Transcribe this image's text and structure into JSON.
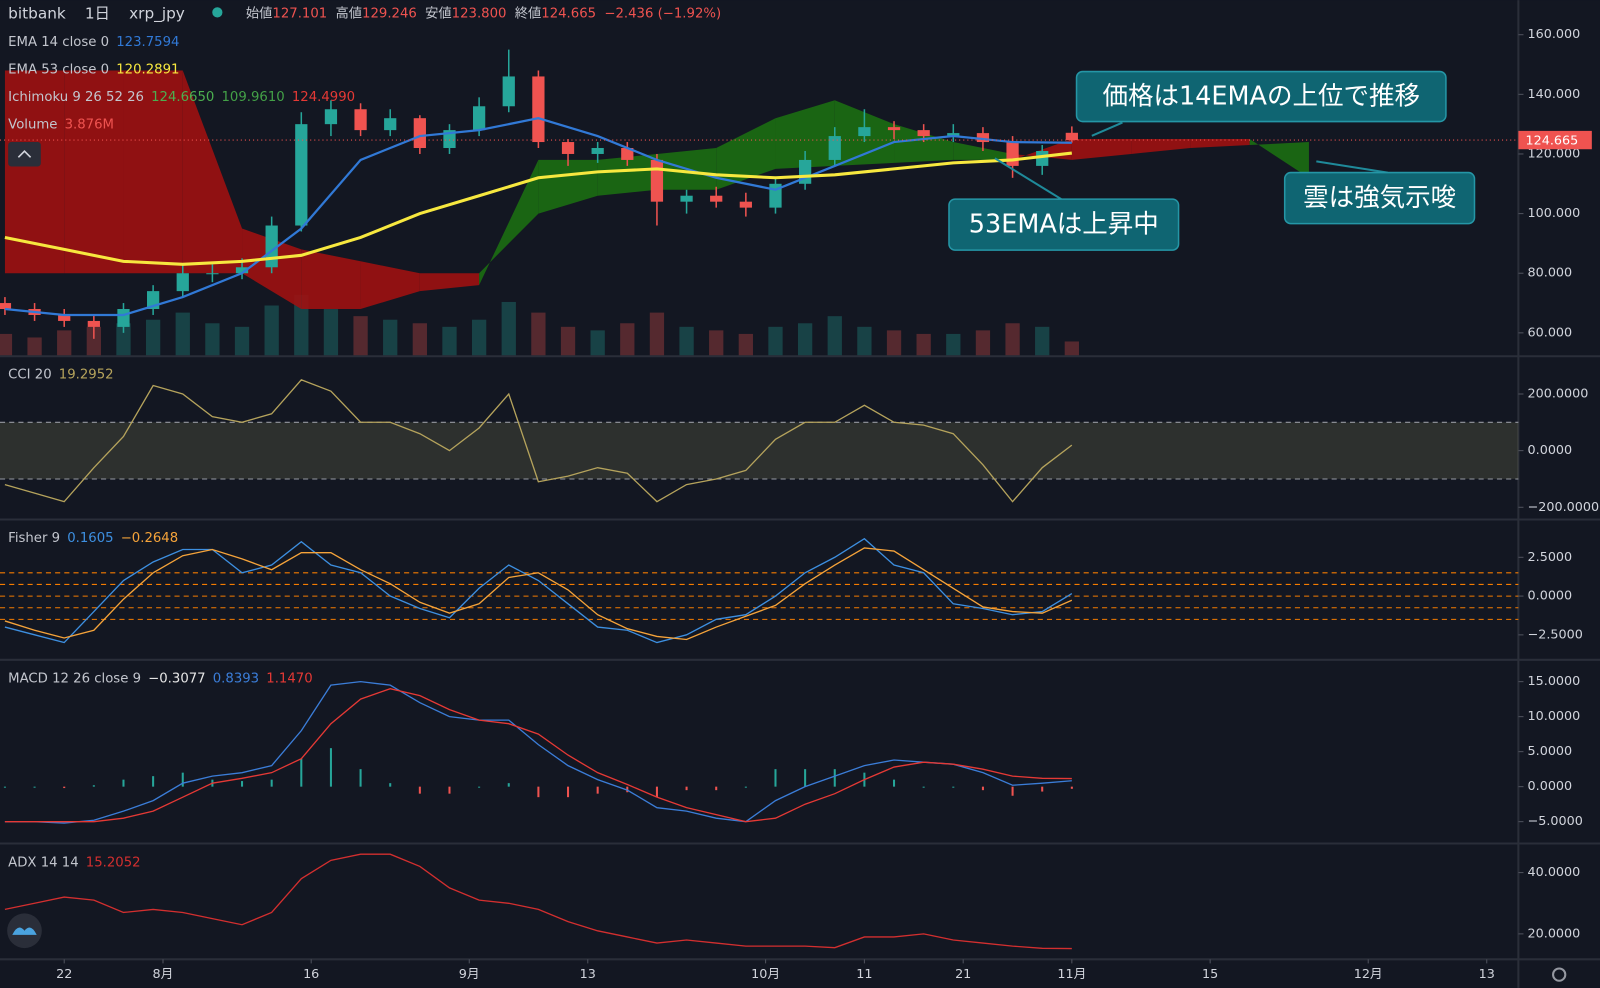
{
  "header": {
    "exchange": "bitbank",
    "interval": "1日",
    "symbol": "xrp_jpy",
    "ohlc": [
      {
        "label": "始値",
        "value": "127.101"
      },
      {
        "label": "高値",
        "value": "129.246"
      },
      {
        "label": "安値",
        "value": "123.800"
      },
      {
        "label": "終値",
        "value": "124.665"
      }
    ],
    "change": "−2.436 (−1.92%)"
  },
  "chart_data": {
    "type": "candlestick",
    "x": [
      -6,
      -3,
      0,
      3,
      6,
      9,
      12,
      15,
      18,
      21,
      24,
      27,
      30,
      33,
      36,
      39,
      42,
      45,
      48,
      51,
      54,
      57,
      60,
      63,
      66,
      69,
      72,
      75,
      78,
      81,
      84,
      87,
      90,
      93,
      96,
      99,
      102
    ],
    "open": [
      70,
      68,
      66,
      64,
      62,
      68,
      74,
      80,
      80,
      82,
      96,
      130,
      135,
      128,
      132,
      122,
      128,
      136,
      146,
      124,
      120,
      122,
      118,
      104,
      106,
      104,
      102,
      110,
      118,
      126,
      129,
      128,
      126,
      127,
      124,
      116,
      127.101
    ],
    "high": [
      72,
      70,
      68,
      66,
      70,
      76,
      83,
      83,
      85,
      99,
      134,
      138,
      137,
      135,
      133,
      130,
      139,
      155,
      148,
      125,
      124,
      124,
      120,
      108,
      109,
      107,
      112,
      121,
      129,
      135,
      131,
      130,
      130,
      129,
      126,
      123,
      129.246
    ],
    "low": [
      66,
      64,
      62,
      58,
      60,
      66,
      72,
      77,
      78,
      80,
      94,
      126,
      126,
      126,
      120,
      120,
      126,
      134,
      122,
      116,
      117,
      116,
      96,
      100,
      102,
      99,
      100,
      108,
      116,
      124,
      125,
      124,
      124,
      121,
      112,
      113,
      123.8
    ],
    "close": [
      68,
      66,
      64,
      62,
      68,
      74,
      80,
      80,
      82,
      96,
      130,
      135,
      128,
      132,
      122,
      128,
      136,
      146,
      124,
      120,
      122,
      118,
      104,
      106,
      104,
      102,
      110,
      118,
      126,
      129,
      128,
      126,
      127,
      124,
      116,
      121,
      124.665
    ],
    "up_color": "#26a69a",
    "down_color": "#ef5350",
    "xlim": [
      -6.5,
      147.2
    ],
    "xticks": [
      {
        "value": 0,
        "label": "22"
      },
      {
        "value": 10,
        "label": "8月"
      },
      {
        "value": 25,
        "label": "16"
      },
      {
        "value": 41,
        "label": "9月"
      },
      {
        "value": 53,
        "label": "13"
      },
      {
        "value": 71,
        "label": "10月"
      },
      {
        "value": 81,
        "label": "11"
      },
      {
        "value": 91,
        "label": "21"
      },
      {
        "value": 102,
        "label": "11月"
      },
      {
        "value": 116,
        "label": "15"
      },
      {
        "value": 132,
        "label": "12月"
      },
      {
        "value": 144,
        "label": "13"
      }
    ],
    "ylim": [
      52.5,
      171.6
    ],
    "yticks": [
      {
        "value": 60,
        "label": "60.000"
      },
      {
        "value": 80,
        "label": "80.000"
      },
      {
        "value": 100,
        "label": "100.000"
      },
      {
        "value": 120,
        "label": "120.000"
      },
      {
        "value": 140,
        "label": "140.000"
      },
      {
        "value": 160,
        "label": "160.000"
      }
    ],
    "last_price": {
      "value": 124.665,
      "label": "124.665",
      "color": "#ef5350"
    },
    "series": [
      {
        "name": "EMA 14 close 0",
        "value_label": "123.7594",
        "color": "#3179d6",
        "x": [
          -6,
          0,
          6,
          12,
          18,
          24,
          30,
          36,
          42,
          48,
          54,
          60,
          66,
          72,
          78,
          84,
          90,
          96,
          102
        ],
        "values": [
          68,
          66,
          66,
          72,
          80,
          95,
          118,
          126,
          128,
          132,
          126,
          118,
          112,
          108,
          116,
          124,
          126,
          124,
          123.7594
        ]
      },
      {
        "name": "EMA 53 close 0",
        "value_label": "120.2891",
        "color": "#f7e83f",
        "x": [
          -6,
          0,
          6,
          12,
          18,
          24,
          30,
          36,
          42,
          48,
          54,
          60,
          66,
          72,
          78,
          84,
          90,
          96,
          102
        ],
        "values": [
          92,
          88,
          84,
          83,
          84,
          86,
          92,
          100,
          106,
          112,
          114,
          115,
          113,
          112,
          113,
          115,
          117,
          118,
          120.2891
        ]
      }
    ],
    "ichimoku": {
      "name": "Ichimoku 9 26 52 26",
      "value_labels": [
        "124.6650",
        "109.9610",
        "124.4990"
      ],
      "label_colors": [
        "#4caf50",
        "#43a047",
        "#e53935"
      ],
      "x": [
        -6,
        0,
        6,
        12,
        18,
        24,
        30,
        36,
        42,
        48,
        54,
        60,
        66,
        72,
        78,
        84,
        90,
        96,
        102,
        108,
        114,
        120,
        126
      ],
      "span_a": [
        80,
        80,
        80,
        80,
        80,
        68,
        68,
        74,
        76,
        118,
        118,
        120,
        122,
        132,
        138,
        130,
        124,
        120,
        118,
        120,
        122,
        123,
        124
      ],
      "span_b": [
        148,
        148,
        148,
        148,
        95,
        88,
        84,
        80,
        80,
        100,
        106,
        108,
        108,
        115,
        116,
        117,
        118,
        118,
        125,
        125,
        125,
        125,
        112
      ],
      "up_color": "#1c6e12",
      "down_color": "#9e1111"
    },
    "volume": {
      "name": "Volume",
      "value_label": "3.876M",
      "ylim": [
        0,
        100
      ],
      "values": [
        6,
        5,
        7,
        8,
        9,
        10,
        12,
        9,
        8,
        14,
        17,
        13,
        11,
        10,
        9,
        8,
        10,
        15,
        12,
        8,
        7,
        9,
        12,
        8,
        7,
        6,
        8,
        9,
        11,
        8,
        7,
        6,
        6,
        7,
        9,
        8,
        3.876
      ]
    },
    "annotations": [
      "価格は14EMAの上位で推移",
      "53EMAは上昇中",
      "雲は強気示唆"
    ],
    "indicators": [
      {
        "type": "line",
        "title": "CCI 20",
        "ylim": [
          -239.6,
          329.7
        ],
        "yticks": [
          {
            "value": 200,
            "label": "200.0000"
          },
          {
            "value": 0,
            "label": "0.0000"
          },
          {
            "value": -200,
            "label": "−200.0000"
          }
        ],
        "band": [
          -100,
          100
        ],
        "series": [
          {
            "value_label": "19.2952",
            "color": "#b5a35c",
            "values": [
              -120,
              -150,
              -180,
              -60,
              50,
              230,
              200,
              120,
              100,
              130,
              250,
              210,
              100,
              100,
              60,
              0,
              80,
              200,
              -110,
              -90,
              -60,
              -80,
              -180,
              -120,
              -100,
              -70,
              40,
              100,
              100,
              160,
              100,
              90,
              60,
              -50,
              -180,
              -60,
              19.2952
            ]
          }
        ]
      },
      {
        "type": "line",
        "title": "Fisher 9",
        "ylim": [
          -4.01,
          4.87
        ],
        "yticks": [
          {
            "value": 2.5,
            "label": "2.5000"
          },
          {
            "value": 0,
            "label": "0.0000"
          },
          {
            "value": -2.5,
            "label": "−2.5000"
          }
        ],
        "levels": [
          1.5,
          0.75,
          0,
          -0.75,
          -1.5
        ],
        "level_color": "#f57c00",
        "series": [
          {
            "value_label": "0.1605",
            "color": "#3d8fe0",
            "values": [
              -2,
              -2.5,
              -3,
              -1,
              1,
              2.2,
              3,
              3,
              1.5,
              2,
              3.5,
              2,
              1.5,
              0,
              -0.8,
              -1.4,
              0.5,
              2,
              1,
              -0.5,
              -2,
              -2.2,
              -3,
              -2.5,
              -1.5,
              -1.2,
              0,
              1.5,
              2.5,
              3.7,
              2,
              1.5,
              -0.5,
              -0.8,
              -1.2,
              -1,
              0.1605
            ]
          },
          {
            "value_label": "−0.2648",
            "color": "#f5a33a",
            "values": [
              -1.6,
              -2.2,
              -2.7,
              -2.2,
              -0.2,
              1.5,
              2.6,
              3,
              2.4,
              1.7,
              2.8,
              2.8,
              1.7,
              0.8,
              -0.4,
              -1.1,
              -0.5,
              1.2,
              1.5,
              0.4,
              -1.2,
              -2.1,
              -2.6,
              -2.8,
              -2,
              -1.3,
              -0.6,
              0.8,
              2,
              3.1,
              2.9,
              1.7,
              0.5,
              -0.7,
              -1,
              -1.1,
              -0.2648
            ]
          }
        ]
      },
      {
        "type": "line",
        "title": "MACD 12 26 close 9",
        "ylim": [
          -7.9,
          17.9
        ],
        "yticks": [
          {
            "value": 15,
            "label": "15.0000"
          },
          {
            "value": 10,
            "label": "10.0000"
          },
          {
            "value": 5,
            "label": "5.0000"
          },
          {
            "value": 0,
            "label": "0.0000"
          },
          {
            "value": -5,
            "label": "−5.0000"
          }
        ],
        "histogram": {
          "value_label": "−0.3077",
          "color": "#e6e6e6",
          "up_color": "#26a69a",
          "down_color": "#ef5350",
          "values": [
            0,
            0,
            -0.2,
            0.2,
            1,
            1.5,
            2,
            1,
            0.8,
            1,
            4,
            5.5,
            2.5,
            0.5,
            -1,
            -1,
            0,
            0.5,
            -1.5,
            -1.5,
            -1,
            -0.8,
            -1.5,
            -0.5,
            -0.5,
            0,
            2.5,
            2.5,
            2.5,
            2,
            1,
            0,
            0,
            -0.5,
            -1.3,
            -0.7,
            -0.3077
          ]
        },
        "series": [
          {
            "value_label": "0.8393",
            "color": "#3b7dd8",
            "values": [
              -5,
              -5,
              -5.2,
              -4.8,
              -3.5,
              -2,
              0.5,
              1.5,
              2,
              3,
              8,
              14.5,
              15,
              14.5,
              12,
              10,
              9.5,
              9.5,
              6,
              3,
              1,
              -0.5,
              -3,
              -3.5,
              -4.5,
              -5,
              -2,
              0,
              1.5,
              3,
              3.8,
              3.5,
              3.2,
              2,
              0.2,
              0.5,
              0.8393
            ]
          },
          {
            "value_label": "1.1470",
            "color": "#e53935",
            "values": [
              -5,
              -5,
              -5,
              -5,
              -4.5,
              -3.5,
              -1.5,
              0.5,
              1.2,
              2,
              4,
              9,
              12.5,
              14,
              13,
              11,
              9.5,
              9,
              7.5,
              4.5,
              2,
              0.3,
              -1.5,
              -3,
              -4,
              -5,
              -4.5,
              -2.5,
              -1,
              1,
              2.8,
              3.5,
              3.2,
              2.5,
              1.5,
              1.2,
              1.147
            ]
          }
        ]
      },
      {
        "type": "line",
        "title": "ADX 14 14",
        "ylim": [
          11.7,
          49
        ],
        "yticks": [
          {
            "value": 40,
            "label": "40.0000"
          },
          {
            "value": 20,
            "label": "20.0000"
          }
        ],
        "series": [
          {
            "value_label": "15.2052",
            "color": "#d32f2f",
            "values": [
              28,
              30,
              32,
              31,
              27,
              28,
              27,
              25,
              23,
              27,
              38,
              44,
              46,
              46,
              42,
              35,
              31,
              30,
              28,
              24,
              21,
              19,
              17,
              18,
              17,
              16,
              16,
              16,
              15.5,
              19,
              19,
              20,
              18,
              17,
              16,
              15.3,
              15.2052
            ]
          }
        ]
      }
    ]
  }
}
